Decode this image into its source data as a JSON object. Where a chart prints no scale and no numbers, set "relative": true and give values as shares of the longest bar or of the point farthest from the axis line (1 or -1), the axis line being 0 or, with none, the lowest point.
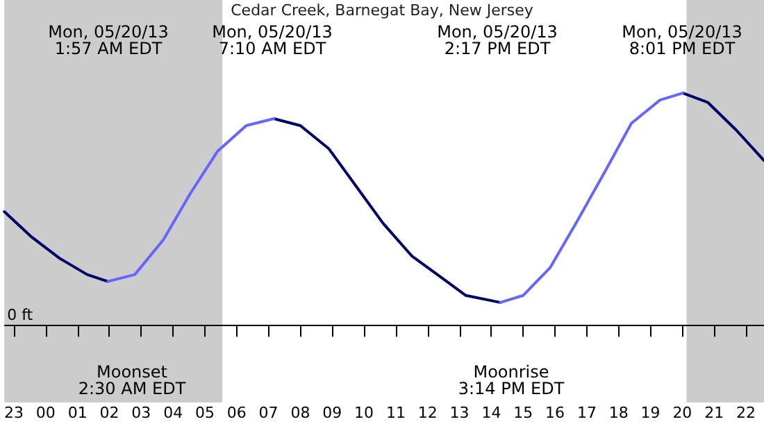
{
  "chart_data": {
    "type": "line",
    "title": "Cedar Creek, Barnegat Bay, New Jersey",
    "relative": true,
    "x": [
      "--05-19T22:42",
      "--05-19T23:34",
      "--05-20T00:26",
      "--05-20T01:18",
      "--05-20T01:57",
      "--05-20T02:48",
      "--05-20T03:42",
      "--05-20T04:33",
      "--05-20T05:24",
      "--05-20T06:18",
      "--05-20T07:10",
      "--05-20T08:00",
      "--05-20T08:54",
      "--05-20T09:45",
      "--05-20T10:36",
      "--05-20T11:30",
      "--05-20T12:24",
      "--05-20T13:12",
      "--05-20T14:17",
      "--05-20T15:00",
      "--05-20T15:51",
      "--05-20T16:42",
      "--05-20T17:36",
      "--05-20T18:24",
      "--05-20T19:18",
      "--05-20T20:01",
      "--05-20T20:48",
      "--05-20T21:42",
      "--05-20T22:34"
    ],
    "series": [
      {
        "color": "#000066",
        "values": [
          0.49,
          0.38,
          0.29,
          0.22,
          0.19,
          null,
          null,
          null,
          null,
          null,
          0.89,
          0.86,
          0.76,
          0.6,
          0.44,
          0.3,
          0.21,
          0.13,
          0.1,
          null,
          null,
          null,
          null,
          null,
          null,
          1.0,
          0.96,
          0.84,
          0.71
        ]
      },
      {
        "color": "#6666ff",
        "values": [
          null,
          null,
          null,
          null,
          0.19,
          0.22,
          0.37,
          0.57,
          0.75,
          0.86,
          0.89,
          null,
          null,
          null,
          null,
          null,
          null,
          null,
          0.1,
          0.13,
          0.25,
          0.45,
          0.67,
          0.87,
          0.97,
          1.0,
          null,
          null,
          null
        ]
      }
    ],
    "xlim": [
      "--05-19T22:42",
      "--05-20T22:34"
    ],
    "xticks": [
      {
        "value": "--05-19T23:00",
        "label": "23"
      },
      {
        "value": "--05-20T00:00",
        "label": "00"
      },
      {
        "value": "--05-20T01:00",
        "label": "01"
      },
      {
        "value": "--05-20T02:00",
        "label": "02"
      },
      {
        "value": "--05-20T03:00",
        "label": "03"
      },
      {
        "value": "--05-20T04:00",
        "label": "04"
      },
      {
        "value": "--05-20T05:00",
        "label": "05"
      },
      {
        "value": "--05-20T06:00",
        "label": "06"
      },
      {
        "value": "--05-20T07:00",
        "label": "07"
      },
      {
        "value": "--05-20T08:00",
        "label": "08"
      },
      {
        "value": "--05-20T09:00",
        "label": "09"
      },
      {
        "value": "--05-20T10:00",
        "label": "10"
      },
      {
        "value": "--05-20T11:00",
        "label": "11"
      },
      {
        "value": "--05-20T12:00",
        "label": "12"
      },
      {
        "value": "--05-20T13:00",
        "label": "13"
      },
      {
        "value": "--05-20T14:00",
        "label": "14"
      },
      {
        "value": "--05-20T15:00",
        "label": "15"
      },
      {
        "value": "--05-20T16:00",
        "label": "16"
      },
      {
        "value": "--05-20T17:00",
        "label": "17"
      },
      {
        "value": "--05-20T18:00",
        "label": "18"
      },
      {
        "value": "--05-20T19:00",
        "label": "19"
      },
      {
        "value": "--05-20T20:00",
        "label": "20"
      },
      {
        "value": "--05-20T21:00",
        "label": "21"
      },
      {
        "value": "--05-20T22:00",
        "label": "22"
      }
    ],
    "bands": [
      {
        "axis": "x",
        "from": "--05-19T22:42",
        "to": "--05-20T05:33",
        "color": "#cccccc"
      },
      {
        "axis": "x",
        "from": "--05-20T20:08",
        "to": "--05-20T22:34",
        "color": "#cccccc"
      }
    ],
    "ref_lines": [
      {
        "axis": "y",
        "value": 0,
        "label": "0 ft",
        "color": "#000000"
      }
    ],
    "annotations": [
      "Mon, 05/20/13\n1:57 AM EDT",
      "Mon, 05/20/13\n7:10 AM EDT",
      "Mon, 05/20/13\n2:17 PM EDT",
      "Mon, 05/20/13\n8:01 PM EDT",
      "Moonset\n2:30 AM EDT",
      "Moonrise\n3:14 PM EDT"
    ],
    "grid": false,
    "marker": "none",
    "line_style": "solid"
  }
}
